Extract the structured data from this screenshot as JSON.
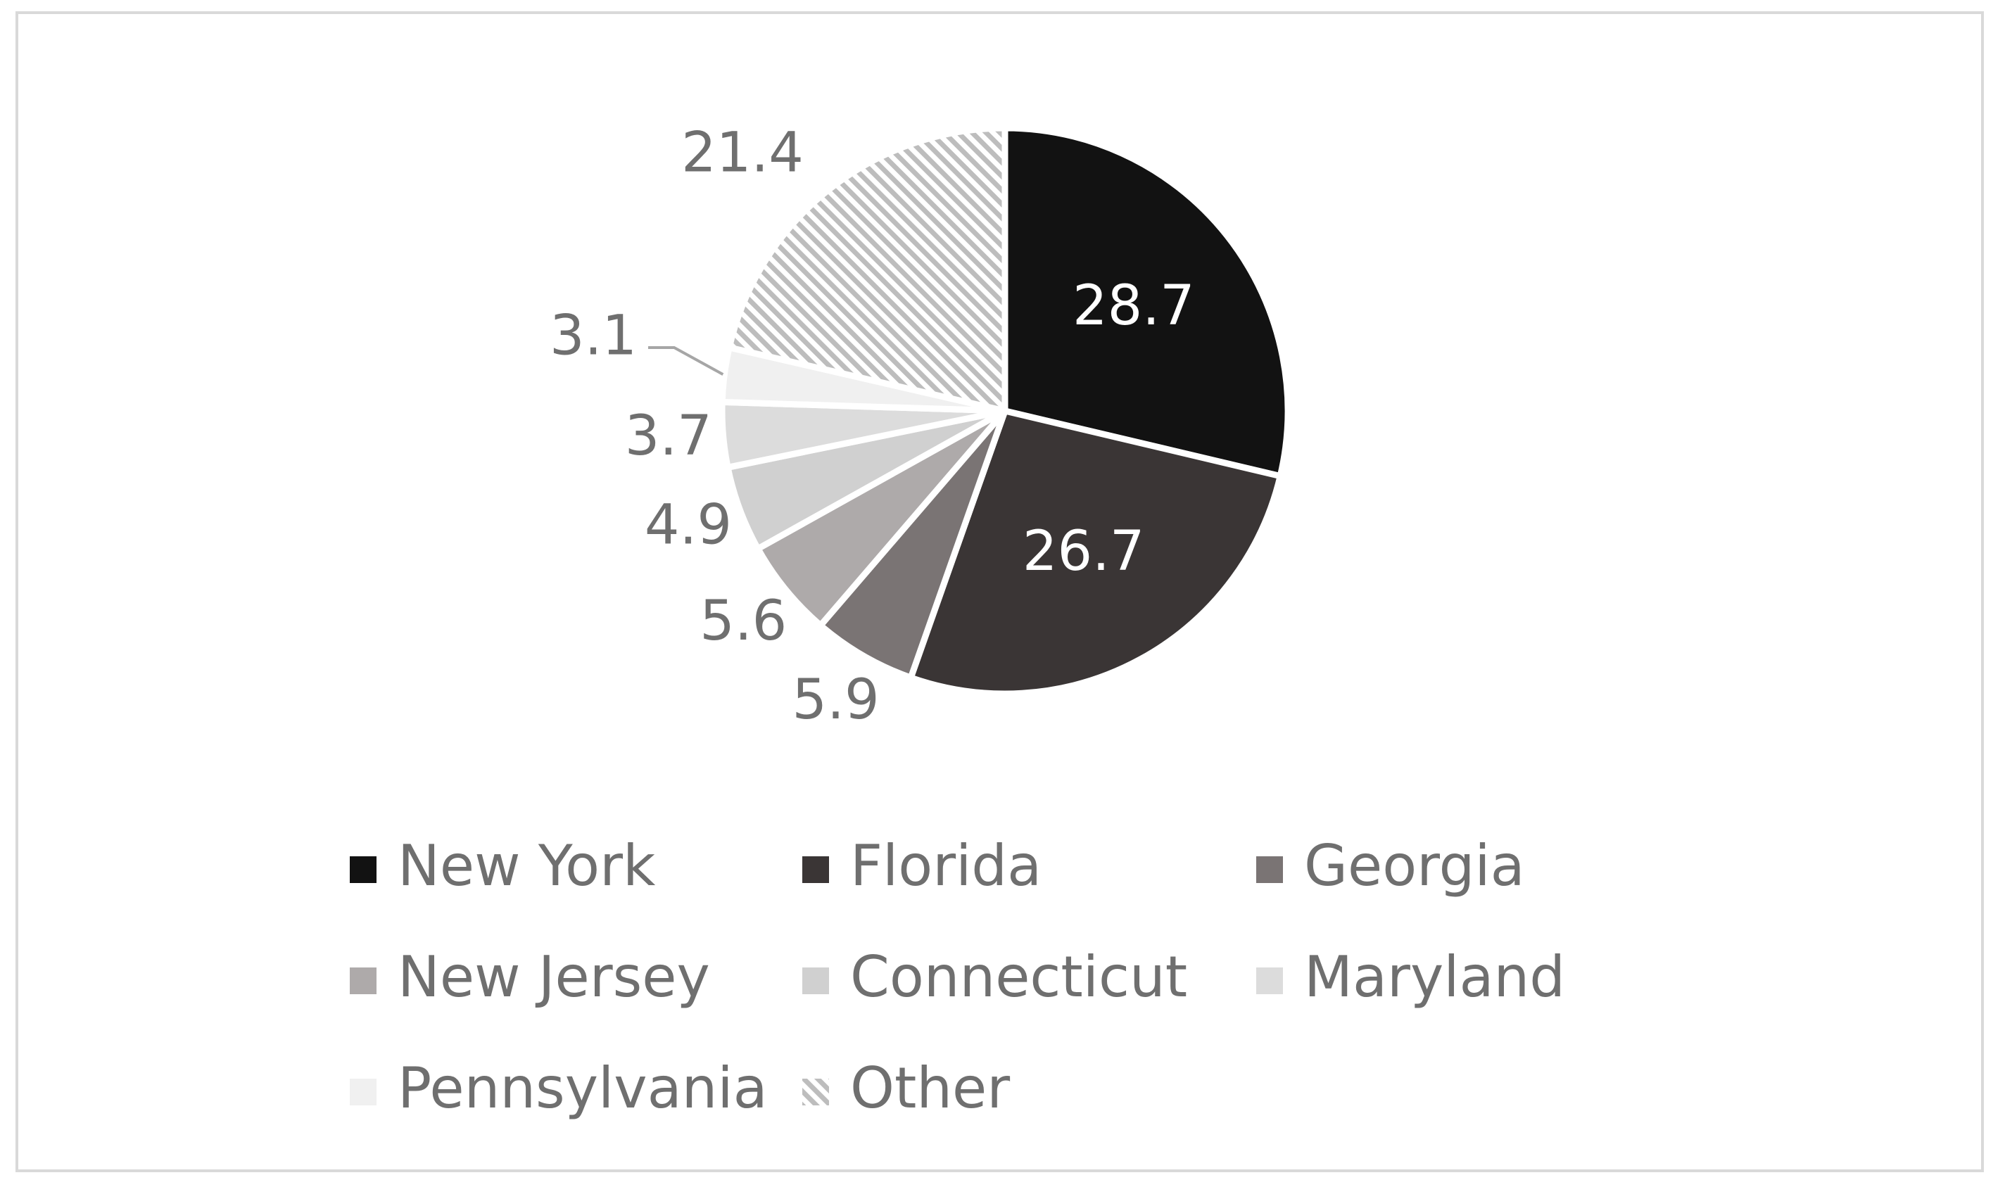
{
  "chart_data": {
    "type": "pie",
    "categories": [
      "New York",
      "Florida",
      "Georgia",
      "New Jersey",
      "Connecticut",
      "Maryland",
      "Pennsylvania",
      "Other"
    ],
    "values": [
      28.7,
      26.7,
      5.9,
      5.6,
      4.9,
      3.7,
      3.1,
      21.4
    ],
    "data_labels": [
      "28.7",
      "26.7",
      "5.9",
      "5.6",
      "4.9",
      "3.7",
      "3.1",
      "21.4"
    ],
    "colors": [
      "#121212",
      "#3a3535",
      "#7a7474",
      "#aeaaaa",
      "#d0d0d0",
      "#dcdcdc",
      "#f0f0f0",
      "hatched-gray"
    ],
    "start_angle": "12 o'clock",
    "direction": "clockwise",
    "legend_position": "bottom",
    "title": ""
  }
}
